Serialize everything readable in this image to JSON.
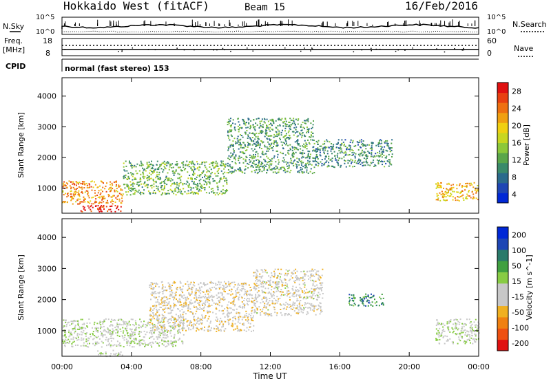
{
  "header": {
    "title": "Hokkaido West (fitACF)",
    "beam": "Beam 15",
    "date": "16/Feb/2016"
  },
  "top_panels": {
    "nsky_label": "N.Sky",
    "nsky_ticks": [
      "10^5",
      "10^0"
    ],
    "nsearch_label": "N.Search",
    "nsearch_ticks": [
      "10^5",
      "10^0"
    ],
    "freq_label": "Freq.",
    "freq_unit": "[MHz]",
    "freq_ticks": [
      "18",
      "8"
    ],
    "nave_label": "Nave",
    "nave_ticks": [
      "60",
      "0"
    ],
    "cpid_label": "CPID",
    "cpid_value": "normal (fast stereo) 153"
  },
  "colors": {
    "power_scale": [
      "#0028d6",
      "#1e46b4",
      "#2a6a8c",
      "#3a8a6a",
      "#5aa64a",
      "#8cc83a",
      "#c8d620",
      "#f0d010",
      "#f0a010",
      "#ee7010",
      "#e84010",
      "#e01010"
    ],
    "velocity_scale": [
      "#e01010",
      "#ee5010",
      "#f08010",
      "#f0b020",
      "#c8c8c8",
      "#c8c8c8",
      "#88cc44",
      "#40a040",
      "#2a7a6a",
      "#1e46b4",
      "#0028d6"
    ]
  },
  "chart_data": [
    {
      "type": "heatmap",
      "quantity": "Power",
      "xlabel": "",
      "ylabel": "Slant Range [km]",
      "xlim": [
        "00:00",
        "24:00"
      ],
      "ylim": [
        180,
        4600
      ],
      "yticks": [
        "4000",
        "3000",
        "2000",
        "1000"
      ],
      "colorbar_label": "Power [dB]",
      "colorbar_ticks": [
        "28",
        "24",
        "20",
        "16",
        "12",
        "8",
        "4"
      ],
      "colorbar_range": [
        0,
        30
      ],
      "features": [
        {
          "start_h": 0.0,
          "end_h": 3.5,
          "range_min_km": 500,
          "range_max_km": 1250,
          "power_db": 22
        },
        {
          "start_h": 1.0,
          "end_h": 3.5,
          "range_min_km": 250,
          "range_max_km": 450,
          "power_db": 29
        },
        {
          "start_h": 3.5,
          "end_h": 9.5,
          "range_min_km": 800,
          "range_max_km": 1900,
          "power_db": 12
        },
        {
          "start_h": 9.5,
          "end_h": 14.5,
          "range_min_km": 1500,
          "range_max_km": 3300,
          "power_db": 10
        },
        {
          "start_h": 14.5,
          "end_h": 19.0,
          "range_min_km": 1700,
          "range_max_km": 2600,
          "power_db": 9
        },
        {
          "start_h": 21.5,
          "end_h": 24.0,
          "range_min_km": 600,
          "range_max_km": 1200,
          "power_db": 20
        }
      ]
    },
    {
      "type": "heatmap",
      "quantity": "Velocity",
      "xlabel": "Time UT",
      "ylabel": "Slant Range [km]",
      "xlim": [
        "00:00",
        "24:00"
      ],
      "xticks": [
        "00:00",
        "04:00",
        "08:00",
        "12:00",
        "16:00",
        "20:00",
        "00:00"
      ],
      "ylim": [
        180,
        4600
      ],
      "yticks": [
        "4000",
        "3000",
        "2000",
        "1000"
      ],
      "colorbar_label": "Velocity [m s^-1]",
      "colorbar_ticks": [
        "200",
        "100",
        "50",
        "15",
        "-15",
        "-50",
        "-100",
        "-200"
      ],
      "colorbar_range": [
        -250,
        250
      ],
      "features": [
        {
          "start_h": 0.0,
          "end_h": 7.0,
          "range_min_km": 500,
          "range_max_km": 1400,
          "velocity_ms": 0
        },
        {
          "start_h": 2.0,
          "end_h": 3.5,
          "range_min_km": 200,
          "range_max_km": 400,
          "velocity_ms": 0
        },
        {
          "start_h": 5.0,
          "end_h": 11.0,
          "range_min_km": 1000,
          "range_max_km": 2600,
          "velocity_ms": -40
        },
        {
          "start_h": 11.0,
          "end_h": 15.0,
          "range_min_km": 1500,
          "range_max_km": 3000,
          "velocity_ms": -30
        },
        {
          "start_h": 16.5,
          "end_h": 18.5,
          "range_min_km": 1800,
          "range_max_km": 2200,
          "velocity_ms": 120
        },
        {
          "start_h": 21.5,
          "end_h": 24.0,
          "range_min_km": 600,
          "range_max_km": 1400,
          "velocity_ms": 0
        }
      ]
    }
  ]
}
